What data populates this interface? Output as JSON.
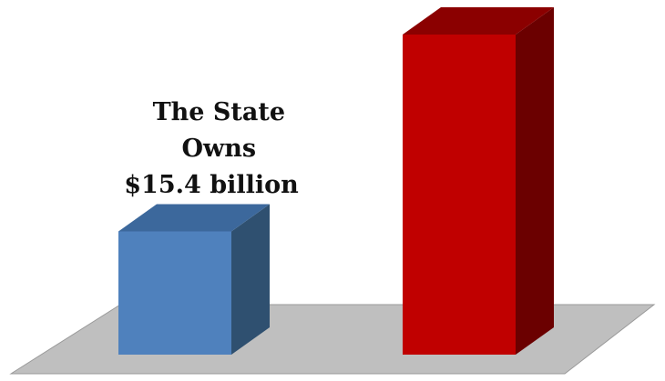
{
  "chart_data": {
    "type": "bar",
    "three_d": true,
    "categories": [
      "",
      ""
    ],
    "series": [
      {
        "values": [
          15.4,
          40.0
        ]
      }
    ],
    "units": "billion",
    "ylim": [
      0,
      40
    ],
    "grid": false,
    "legend": "none",
    "annotation": {
      "lines": [
        "The State",
        "Owns",
        "$15.4 billion"
      ]
    }
  },
  "colors": {
    "bar_1": {
      "front": "#4f81bd",
      "top": "#3c689c",
      "side": "#2f5070"
    },
    "bar_2": {
      "front": "#c00000",
      "top": "#8b0000",
      "side": "#6b0000"
    },
    "floor": "#bfbfbf",
    "floor_stroke": "#9a9a9a"
  }
}
